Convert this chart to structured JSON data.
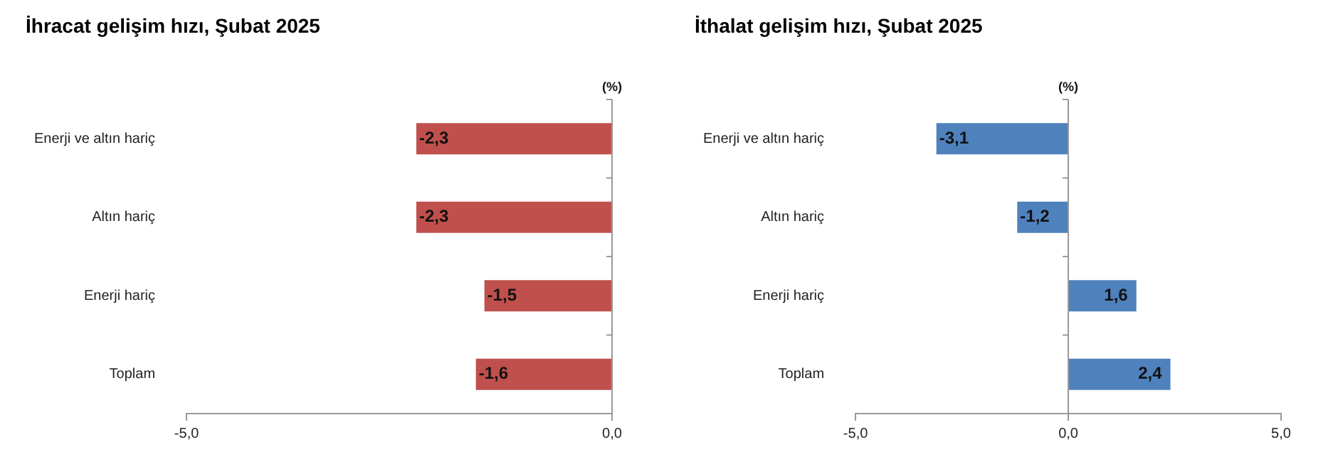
{
  "chart_data": [
    {
      "type": "bar",
      "orientation": "horizontal",
      "title": "İhracat gelişim hızı, Şubat 2025",
      "annotations": [
        "(%)"
      ],
      "categories": [
        "Enerji ve altın hariç",
        "Altın hariç",
        "Enerji hariç",
        "Toplam"
      ],
      "values": [
        -2.3,
        -2.3,
        -1.5,
        -1.6
      ],
      "value_labels": [
        "-2,3",
        "-2,3",
        "-1,5",
        "-1,6"
      ],
      "color": "#c0504d",
      "ref_lines": [
        {
          "axis": "x",
          "value": 0,
          "color": "#999999"
        }
      ],
      "xlim": [
        -5,
        0
      ],
      "xticks": [
        {
          "value": -5,
          "label": "-5,0"
        },
        {
          "value": 0,
          "label": "0,0"
        }
      ],
      "grid": false,
      "legend": false
    },
    {
      "type": "bar",
      "orientation": "horizontal",
      "title": "İthalat gelişim hızı, Şubat 2025",
      "annotations": [
        "(%)"
      ],
      "categories": [
        "Enerji ve altın hariç",
        "Altın hariç",
        "Enerji hariç",
        "Toplam"
      ],
      "values": [
        -3.1,
        -1.2,
        1.6,
        2.4
      ],
      "value_labels": [
        "-3,1",
        "-1,2",
        "1,6",
        "2,4"
      ],
      "color": "#4f81bd",
      "ref_lines": [
        {
          "axis": "x",
          "value": 0,
          "color": "#999999"
        }
      ],
      "xlim": [
        -5,
        5
      ],
      "xticks": [
        {
          "value": -5,
          "label": "-5,0"
        },
        {
          "value": 0,
          "label": "0,0"
        },
        {
          "value": 5,
          "label": "5,0"
        }
      ],
      "grid": false,
      "legend": false
    }
  ]
}
